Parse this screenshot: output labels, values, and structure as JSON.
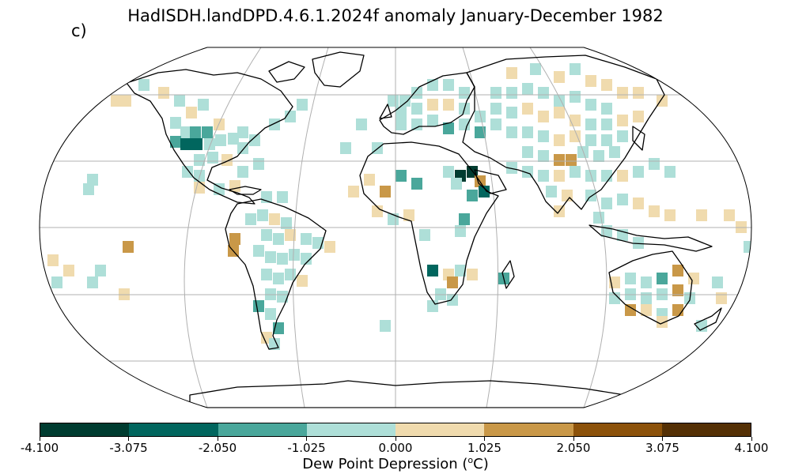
{
  "title": "HadISDH.landDPD.4.6.1.2024f anomaly January-December 1982",
  "panel_label": "c)",
  "colorbar": {
    "label_prefix": "Dew Point Depression (",
    "label_sup": "o",
    "label_suffix": "C)",
    "ticks": [
      "-4.100",
      "-3.075",
      "-2.050",
      "-1.025",
      "0.000",
      "1.025",
      "2.050",
      "3.075",
      "4.100"
    ],
    "colors": [
      "#003c30",
      "#01665e",
      "#4aa79b",
      "#aedfd8",
      "#f0dbae",
      "#c99848",
      "#8c520a",
      "#543005"
    ]
  },
  "map": {
    "projection": "Robinson",
    "gridlines": true,
    "colors": {
      "c1": "#aedfd8",
      "c2": "#4aa79b",
      "c3": "#01665e",
      "c4": "#003c30",
      "w1": "#f0dbae",
      "w2": "#c99848"
    }
  }
}
